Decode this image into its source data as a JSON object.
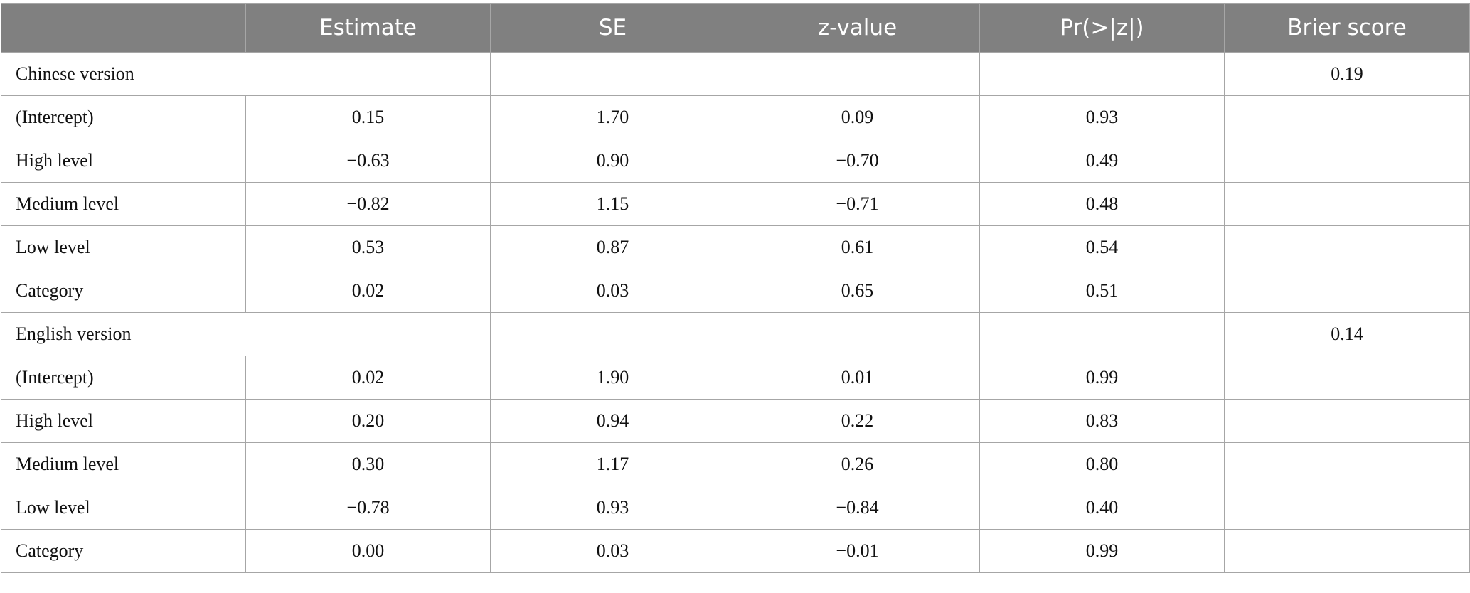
{
  "table": {
    "header": [
      "",
      "Estimate",
      "SE",
      "z-value",
      "Pr(>|z|)",
      "Brier score"
    ],
    "sections": [
      {
        "label": "Chinese version",
        "brier_score": "0.19",
        "rows": [
          [
            "(Intercept)",
            "0.15",
            "1.70",
            "0.09",
            "0.93"
          ],
          [
            "High level",
            "−0.63",
            "0.90",
            "−0.70",
            "0.49"
          ],
          [
            "Medium level",
            "−0.82",
            "1.15",
            "−0.71",
            "0.48"
          ],
          [
            "Low level",
            "0.53",
            "0.87",
            "0.61",
            "0.54"
          ],
          [
            "Category",
            "0.02",
            "0.03",
            "0.65",
            "0.51"
          ]
        ]
      },
      {
        "label": "English version",
        "brier_score": "0.14",
        "rows": [
          [
            "(Intercept)",
            "0.02",
            "1.90",
            "0.01",
            "0.99"
          ],
          [
            "High level",
            "0.20",
            "0.94",
            "0.22",
            "0.83"
          ],
          [
            "Medium level",
            "0.30",
            "1.17",
            "0.26",
            "0.80"
          ],
          [
            "Low level",
            "−0.78",
            "0.93",
            "−0.84",
            "0.40"
          ],
          [
            "Category",
            "0.00",
            "0.03",
            "−0.01",
            "0.99"
          ]
        ]
      }
    ]
  }
}
